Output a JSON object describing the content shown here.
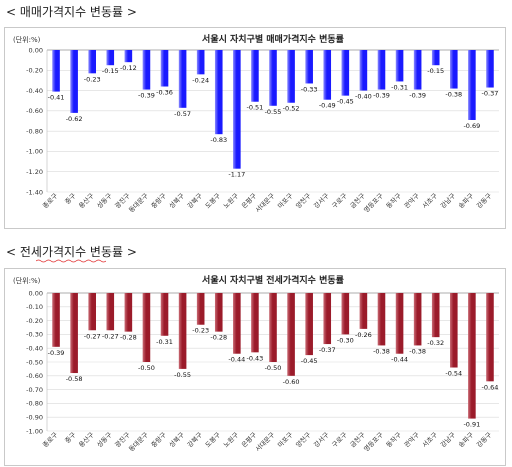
{
  "section1_title": "< 매매가격지수 변동률 >",
  "section2_title": "< 전세가격지수 변동률 >",
  "chart_data": [
    {
      "type": "bar",
      "title": "서울시 자치구별 매매가격지수 변동률",
      "unit_label": "(단위:%)",
      "categories": [
        "종로구",
        "중구",
        "용산구",
        "성동구",
        "광진구",
        "동대문구",
        "중랑구",
        "성북구",
        "강북구",
        "도봉구",
        "노원구",
        "은평구",
        "서대문구",
        "마포구",
        "양천구",
        "강서구",
        "구로구",
        "금천구",
        "영등포구",
        "동작구",
        "관악구",
        "서초구",
        "강남구",
        "송파구",
        "강동구"
      ],
      "values": [
        -0.41,
        -0.62,
        -0.23,
        -0.15,
        -0.12,
        -0.39,
        -0.36,
        -0.57,
        -0.24,
        -0.83,
        -1.17,
        -0.51,
        -0.55,
        -0.52,
        -0.33,
        -0.49,
        -0.45,
        -0.4,
        -0.39,
        -0.31,
        -0.39,
        -0.15,
        -0.38,
        -0.69,
        -0.37
      ],
      "ylim": [
        -1.4,
        0.0
      ],
      "yticks": [
        "0.00",
        "-0.20",
        "-0.40",
        "-0.60",
        "-0.80",
        "-1.00",
        "-1.20",
        "-1.40"
      ],
      "ytick_values": [
        0,
        -0.2,
        -0.4,
        -0.6,
        -0.8,
        -1.0,
        -1.2,
        -1.4
      ],
      "grid": true,
      "bar_color": "#1a1aff",
      "bar_color_light": "#8a8aff"
    },
    {
      "type": "bar",
      "title": "서울시 자치구별 전세가격지수 변동률",
      "unit_label": "(단위:%)",
      "categories": [
        "종로구",
        "중구",
        "용산구",
        "성동구",
        "광진구",
        "동대문구",
        "중랑구",
        "성북구",
        "강북구",
        "도봉구",
        "노원구",
        "은평구",
        "서대문구",
        "마포구",
        "양천구",
        "강서구",
        "구로구",
        "금천구",
        "영등포구",
        "동작구",
        "관악구",
        "서초구",
        "강남구",
        "송파구",
        "강동구"
      ],
      "values": [
        -0.39,
        -0.58,
        -0.27,
        -0.27,
        -0.28,
        -0.5,
        -0.31,
        -0.55,
        -0.23,
        -0.28,
        -0.44,
        -0.43,
        -0.5,
        -0.6,
        -0.45,
        -0.37,
        -0.3,
        -0.26,
        -0.38,
        -0.44,
        -0.38,
        -0.32,
        -0.54,
        -0.91,
        -0.64
      ],
      "ylim": [
        -1.0,
        0.0
      ],
      "yticks": [
        "0.00",
        "-0.10",
        "-0.20",
        "-0.30",
        "-0.40",
        "-0.50",
        "-0.60",
        "-0.70",
        "-0.80",
        "-0.90",
        "-1.00"
      ],
      "ytick_values": [
        0,
        -0.1,
        -0.2,
        -0.3,
        -0.4,
        -0.5,
        -0.6,
        -0.7,
        -0.8,
        -0.9,
        -1.0
      ],
      "grid": true,
      "bar_color": "#9b1b2a",
      "bar_color_light": "#c96a74"
    }
  ]
}
